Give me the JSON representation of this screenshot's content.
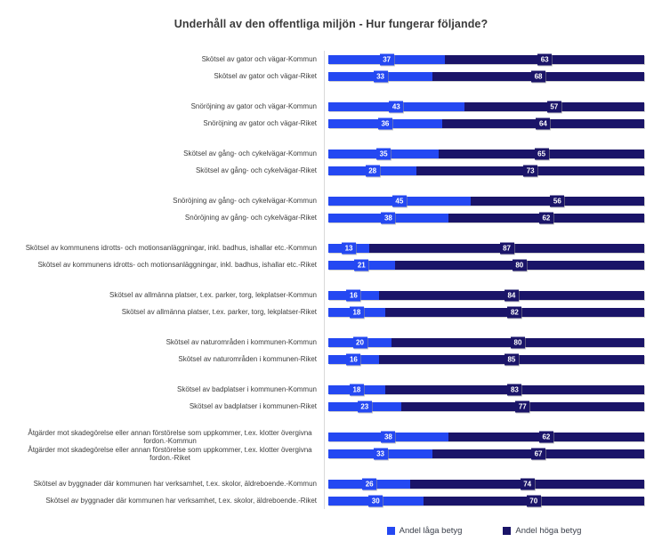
{
  "chart_data": {
    "type": "bar",
    "orientation": "horizontal",
    "stacked": true,
    "title": "Underhåll av den offentliga miljön - Hur fungerar följande?",
    "xlabel": "",
    "ylabel": "",
    "value_unit": "percent",
    "xlim": [
      0,
      100
    ],
    "grid": false,
    "legend_position": "bottom",
    "series": [
      {
        "name": "Andel låga betyg",
        "color": "#2448f2"
      },
      {
        "name": "Andel höga betyg",
        "color": "#1a1468"
      }
    ],
    "rows": [
      {
        "label": "Skötsel av gator och vägar-Kommun",
        "low": 37,
        "high": 63
      },
      {
        "label": "Skötsel av gator och vägar-Riket",
        "low": 33,
        "high": 68
      },
      {
        "label": "Snöröjning av gator och vägar-Kommun",
        "low": 43,
        "high": 57
      },
      {
        "label": "Snöröjning av gator och vägar-Riket",
        "low": 36,
        "high": 64
      },
      {
        "label": "Skötsel av gång- och cykelvägar-Kommun",
        "low": 35,
        "high": 65
      },
      {
        "label": "Skötsel av gång- och cykelvägar-Riket",
        "low": 28,
        "high": 73
      },
      {
        "label": "Snöröjning av gång- och cykelvägar-Kommun",
        "low": 45,
        "high": 56
      },
      {
        "label": "Snöröjning av gång- och cykelvägar-Riket",
        "low": 38,
        "high": 62
      },
      {
        "label": "Skötsel av kommunens idrotts- och motionsanläggningar, inkl. badhus, ishallar etc.-Kommun",
        "low": 13,
        "high": 87
      },
      {
        "label": "Skötsel av kommunens idrotts- och motionsanläggningar, inkl. badhus, ishallar etc.-Riket",
        "low": 21,
        "high": 80
      },
      {
        "label": "Skötsel av allmänna platser, t.ex. parker, torg, lekplatser-Kommun",
        "low": 16,
        "high": 84
      },
      {
        "label": "Skötsel av allmänna platser, t.ex. parker, torg, lekplatser-Riket",
        "low": 18,
        "high": 82
      },
      {
        "label": "Skötsel av naturområden i kommunen-Kommun",
        "low": 20,
        "high": 80
      },
      {
        "label": "Skötsel av naturområden i kommunen-Riket",
        "low": 16,
        "high": 85
      },
      {
        "label": "Skötsel av badplatser i kommunen-Kommun",
        "low": 18,
        "high": 83
      },
      {
        "label": "Skötsel av badplatser i kommunen-Riket",
        "low": 23,
        "high": 77
      },
      {
        "label": "Åtgärder mot skadegörelse eller annan förstörelse som uppkommer, t.ex. klotter övergivna fordon.-Kommun",
        "low": 38,
        "high": 62
      },
      {
        "label": "Åtgärder mot skadegörelse eller annan förstörelse som uppkommer, t.ex. klotter övergivna fordon.-Riket",
        "low": 33,
        "high": 67
      },
      {
        "label": "Skötsel av byggnader där kommunen har verksamhet, t.ex. skolor, äldreboende.-Kommun",
        "low": 26,
        "high": 74
      },
      {
        "label": "Skötsel av byggnader där kommunen har verksamhet, t.ex. skolor, äldreboende.-Riket",
        "low": 30,
        "high": 70
      }
    ],
    "legend": {
      "items": [
        {
          "label": "Andel låga betyg",
          "color": "#2448f2"
        },
        {
          "label": "Andel höga betyg",
          "color": "#1a1468"
        }
      ]
    }
  }
}
